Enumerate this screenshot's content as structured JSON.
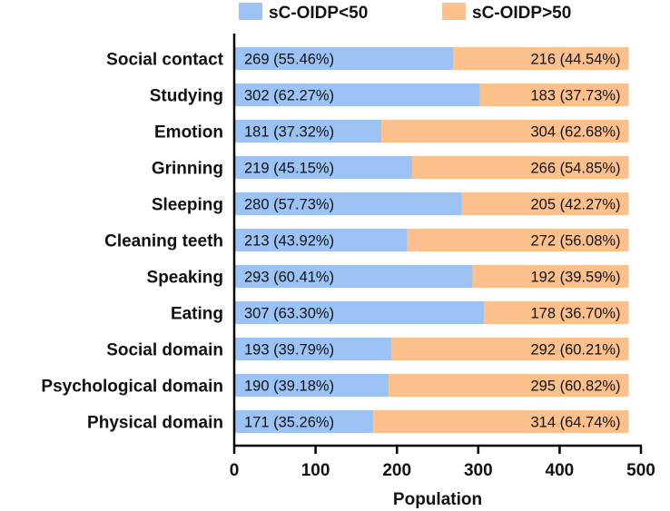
{
  "chart_data": {
    "type": "bar",
    "orientation": "horizontal",
    "stacked": true,
    "title": "",
    "xlabel": "Population",
    "ylabel": "",
    "xlim": [
      0,
      500
    ],
    "xticks": [
      "0",
      "100",
      "200",
      "300",
      "400",
      "500"
    ],
    "grid": false,
    "legend_position": "top",
    "categories": [
      "Social contact",
      "Studying",
      "Emotion",
      "Grinning",
      "Sleeping",
      "Cleaning teeth",
      "Speaking",
      "Eating",
      "Social domain",
      "Psychological domain",
      "Physical domain"
    ],
    "series": [
      {
        "name": "sC-OIDP<50",
        "color": "#9DC3F5",
        "values": [
          269,
          302,
          181,
          219,
          280,
          213,
          293,
          307,
          193,
          190,
          171
        ],
        "labels": [
          "269 (55.46%)",
          "302 (62.27%)",
          "181 (37.32%)",
          "219 (45.15%)",
          "280 (57.73%)",
          "213 (43.92%)",
          "293 (60.41%)",
          "307 (63.30%)",
          "193 (39.79%)",
          "190 (39.18%)",
          "171 (35.26%)"
        ]
      },
      {
        "name": "sC-OIDP>50",
        "color": "#FCC08C",
        "values": [
          216,
          183,
          304,
          266,
          205,
          272,
          192,
          178,
          292,
          295,
          314
        ],
        "labels": [
          "216 (44.54%)",
          "183 (37.73%)",
          "304 (62.68%)",
          "266 (54.85%)",
          "205 (42.27%)",
          "272 (56.08%)",
          "192 (39.59%)",
          "178 (36.70%)",
          "292 (60.21%)",
          "295 (60.82%)",
          "314 (64.74%)"
        ]
      }
    ]
  }
}
